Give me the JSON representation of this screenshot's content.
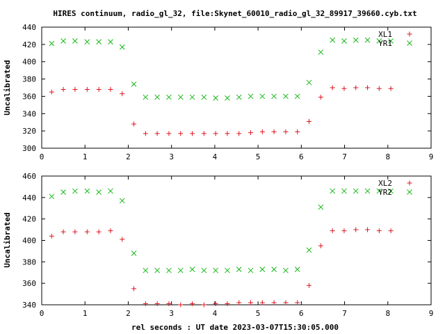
{
  "chart_data": {
    "type": "scatter",
    "title": "HIRES continuum, radio_gl_32, file:Skynet_60010_radio_gl_32_89917_39660.cyb.txt",
    "xlabel": "rel seconds : UT date 2023-03-07T15:30:05.000",
    "panels": [
      {
        "ylabel": "Uncalibrated",
        "xlim": [
          0,
          9
        ],
        "ylim": [
          300,
          440
        ],
        "xticks": [
          0,
          1,
          2,
          3,
          4,
          5,
          6,
          7,
          8,
          9
        ],
        "yticks": [
          300,
          320,
          340,
          360,
          380,
          400,
          420,
          440
        ],
        "legend_position": "top-right",
        "series": [
          {
            "name": "XL1",
            "color": "#e0141e",
            "marker": "plus",
            "x": [
              0.23,
              0.5,
              0.77,
              1.05,
              1.32,
              1.59,
              1.86,
              2.13,
              2.4,
              2.67,
              2.94,
              3.21,
              3.48,
              3.75,
              4.02,
              4.29,
              4.56,
              4.83,
              5.1,
              5.37,
              5.64,
              5.91,
              6.18,
              6.45,
              6.72,
              6.99,
              7.26,
              7.53,
              7.8,
              8.07
            ],
            "y": [
              365,
              368,
              368,
              368,
              368,
              368,
              363,
              328,
              317,
              317,
              317,
              317,
              317,
              317,
              317,
              317,
              317,
              318,
              319,
              319,
              319,
              319,
              331,
              359,
              370,
              369,
              370,
              370,
              369,
              369
            ]
          },
          {
            "name": "YR1",
            "color": "#14b814",
            "marker": "cross",
            "x": [
              0.23,
              0.5,
              0.77,
              1.05,
              1.32,
              1.59,
              1.86,
              2.13,
              2.4,
              2.67,
              2.94,
              3.21,
              3.48,
              3.75,
              4.02,
              4.29,
              4.56,
              4.83,
              5.1,
              5.37,
              5.64,
              5.91,
              6.18,
              6.45,
              6.72,
              6.99,
              7.26,
              7.53,
              7.8,
              8.07
            ],
            "y": [
              421,
              424,
              424,
              423,
              423,
              423,
              417,
              374,
              359,
              359,
              359,
              359,
              359,
              359,
              358,
              358,
              359,
              360,
              360,
              360,
              360,
              360,
              376,
              411,
              425,
              424,
              425,
              425,
              424,
              424
            ]
          }
        ]
      },
      {
        "ylabel": "Uncalibrated",
        "xlim": [
          0,
          9
        ],
        "ylim": [
          340,
          460
        ],
        "xticks": [
          0,
          1,
          2,
          3,
          4,
          5,
          6,
          7,
          8,
          9
        ],
        "yticks": [
          340,
          360,
          380,
          400,
          420,
          440,
          460
        ],
        "legend_position": "top-right",
        "series": [
          {
            "name": "XL2",
            "color": "#e0141e",
            "marker": "plus",
            "x": [
              0.23,
              0.5,
              0.77,
              1.05,
              1.32,
              1.59,
              1.86,
              2.13,
              2.4,
              2.67,
              2.94,
              3.21,
              3.48,
              3.75,
              4.02,
              4.29,
              4.56,
              4.83,
              5.1,
              5.37,
              5.64,
              5.91,
              6.18,
              6.45,
              6.72,
              6.99,
              7.26,
              7.53,
              7.8,
              8.07
            ],
            "y": [
              404,
              408,
              408,
              408,
              408,
              409,
              401,
              355,
              341,
              341,
              341,
              340,
              341,
              340,
              341,
              341,
              342,
              342,
              342,
              342,
              342,
              342,
              358,
              395,
              409,
              409,
              410,
              410,
              409,
              409
            ]
          },
          {
            "name": "YR2",
            "color": "#14b814",
            "marker": "cross",
            "x": [
              0.23,
              0.5,
              0.77,
              1.05,
              1.32,
              1.59,
              1.86,
              2.13,
              2.4,
              2.67,
              2.94,
              3.21,
              3.48,
              3.75,
              4.02,
              4.29,
              4.56,
              4.83,
              5.1,
              5.37,
              5.64,
              5.91,
              6.18,
              6.45,
              6.72,
              6.99,
              7.26,
              7.53,
              7.8,
              8.07
            ],
            "y": [
              441,
              445,
              446,
              446,
              445,
              446,
              437,
              388,
              372,
              372,
              372,
              372,
              373,
              372,
              372,
              372,
              373,
              372,
              373,
              373,
              372,
              373,
              391,
              431,
              446,
              446,
              446,
              446,
              446,
              446
            ]
          }
        ]
      }
    ]
  }
}
